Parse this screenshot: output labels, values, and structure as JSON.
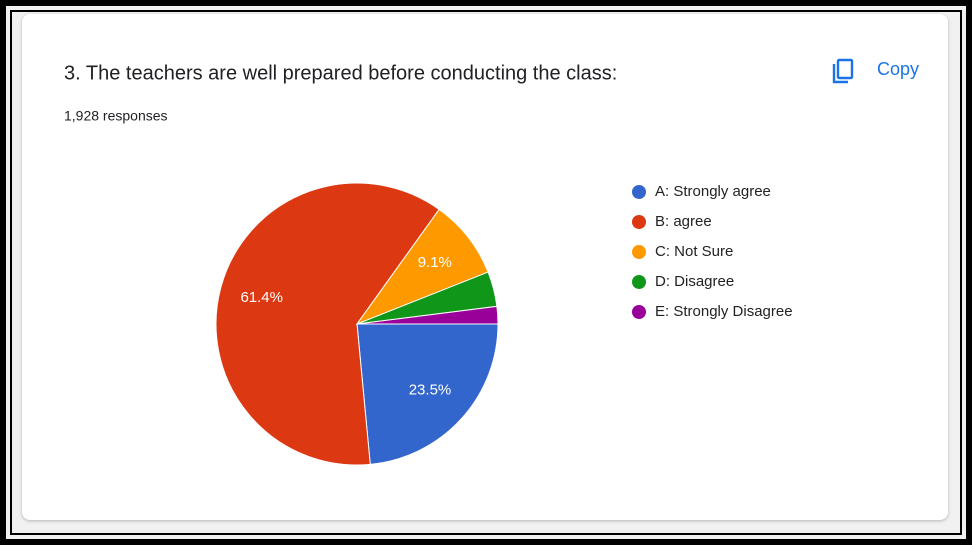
{
  "chart_data": {
    "type": "pie",
    "title": "3. The teachers are well prepared before conducting the class:",
    "subtitle": "1,928 responses",
    "action": "Copy",
    "categories": [
      "A: Strongly agree",
      "B: agree",
      "C: Not Sure",
      "D: Disagree",
      "E: Strongly Disagree"
    ],
    "values": [
      23.5,
      61.4,
      9.1,
      4.0,
      2.0
    ],
    "value_labels": [
      "23.5%",
      "61.4%",
      "9.1%",
      null,
      null
    ],
    "colors": [
      "#3366cc",
      "#dc3912",
      "#ff9900",
      "#109618",
      "#990099"
    ]
  }
}
